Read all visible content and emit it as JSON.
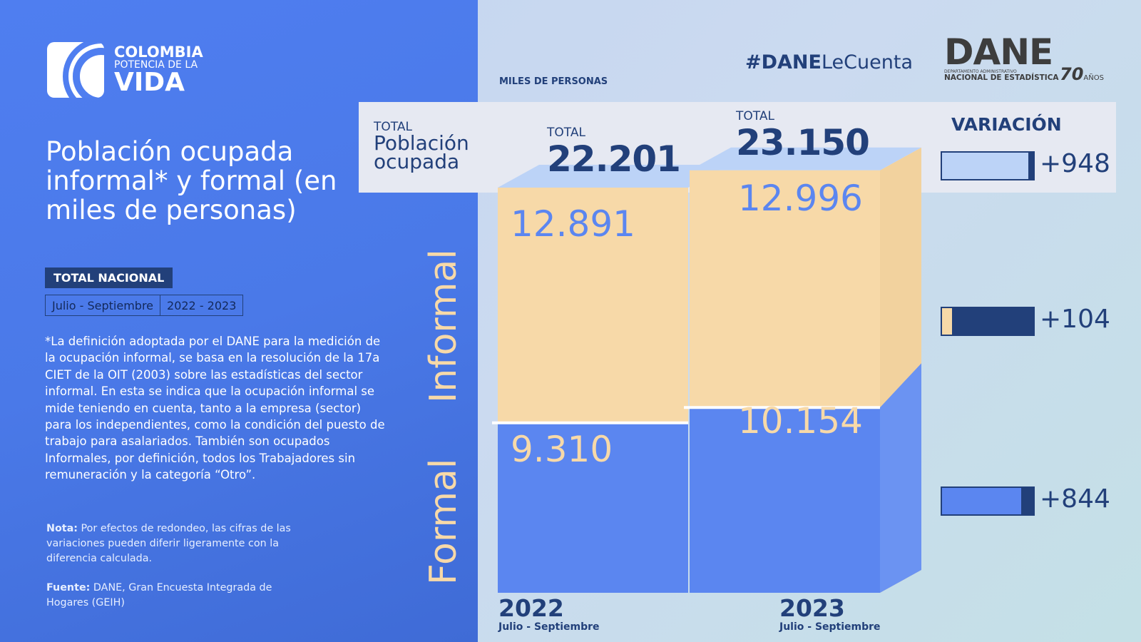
{
  "brand": {
    "line1": "COLOMBIA",
    "line2": "POTENCIA DE LA",
    "line3": "VIDA"
  },
  "title": "Población ocupada informal* y formal (en miles de personas)",
  "badge": "TOTAL NACIONAL",
  "period": {
    "months": "Julio - Septiembre",
    "years": "2022 - 2023"
  },
  "definition": "*La definición adoptada por el DANE para la medición de la ocupación informal, se basa en la resolución de la 17a CIET de la OIT (2003) sobre las estadísticas del sector informal. En esta se indica que la ocupación informal se mide teniendo en cuenta, tanto a la empresa (sector) para los independientes, como la condición del puesto de trabajo para asalariados. También son ocupados Informales, por definición, todos los Trabajadores sin remuneración y la categoría “Otro”.",
  "nota": {
    "label": "Nota:",
    "text": " Por efectos de redondeo, las cifras de las variaciones pueden diferir ligeramente con la diferencia calculada."
  },
  "fuente": {
    "label": "Fuente:",
    "text": " DANE, Gran Encuesta Integrada de Hogares (GEIH)"
  },
  "hashtag": {
    "bold": "#DANE",
    "rest": "LeCuenta"
  },
  "dane_logo": {
    "name": "DANE",
    "sub1": "DEPARTAMENTO ADMINISTRATIVO",
    "sub2": "NACIONAL DE ESTADÍSTICA",
    "anniv": "70",
    "anniv_label": "AÑOS"
  },
  "units": "MILES DE PERSONAS",
  "header": {
    "total_label": "TOTAL",
    "poblacion": "Población ocupada",
    "variacion": "VARIACIÓN"
  },
  "colors": {
    "informal": "#f7d9a8",
    "formal": "#5b86f0",
    "navy": "#22407a",
    "total_light": "#bcd3f7"
  },
  "chart_data": {
    "type": "bar",
    "stacked": true,
    "categories": [
      "2022",
      "2023"
    ],
    "category_sublabels": [
      "Julio - Septiembre",
      "Julio - Septiembre"
    ],
    "series": [
      {
        "name": "Formal",
        "values": [
          9310,
          10154
        ],
        "labels": [
          "9.310",
          "10.154"
        ]
      },
      {
        "name": "Informal",
        "values": [
          12891,
          12996
        ],
        "labels": [
          "12.891",
          "12.996"
        ]
      }
    ],
    "totals": {
      "values": [
        22201,
        23150
      ],
      "labels": [
        "22.201",
        "23.150"
      ]
    },
    "variation": [
      {
        "series": "Total",
        "value": 948,
        "label": "+948"
      },
      {
        "series": "Informal",
        "value": 104,
        "label": "+104"
      },
      {
        "series": "Formal",
        "value": 844,
        "label": "+844"
      }
    ]
  }
}
